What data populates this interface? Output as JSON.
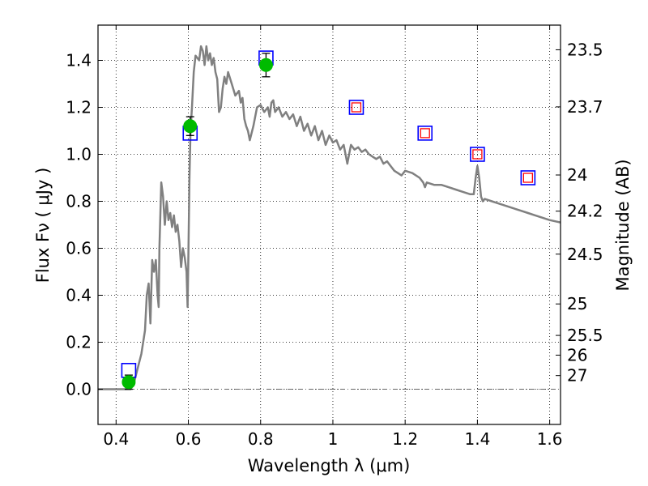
{
  "chart_data": {
    "type": "scatter",
    "title": "",
    "xlabel": "Wavelength  λ (μm)",
    "ylabel": "Flux  Fν  ( μJy )",
    "y2label": "Magnitude (AB)",
    "xlim": [
      0.35,
      1.63
    ],
    "ylim": [
      -0.15,
      1.55
    ],
    "grid": true,
    "x_ticks": [
      {
        "value": 0.4,
        "label": "0.4"
      },
      {
        "value": 0.6,
        "label": "0.6"
      },
      {
        "value": 0.8,
        "label": "0.8"
      },
      {
        "value": 1.0,
        "label": "1"
      },
      {
        "value": 1.2,
        "label": "1.2"
      },
      {
        "value": 1.4,
        "label": "1.4"
      },
      {
        "value": 1.6,
        "label": "1.6"
      }
    ],
    "y_ticks": [
      {
        "value": 0.0,
        "label": "0.0"
      },
      {
        "value": 0.2,
        "label": "0.2"
      },
      {
        "value": 0.4,
        "label": "0.4"
      },
      {
        "value": 0.6,
        "label": "0.6"
      },
      {
        "value": 0.8,
        "label": "0.8"
      },
      {
        "value": 1.0,
        "label": "1.0"
      },
      {
        "value": 1.2,
        "label": "1.2"
      },
      {
        "value": 1.4,
        "label": "1.4"
      }
    ],
    "y2_ticks": [
      {
        "flux": 1.445,
        "label": "23.5"
      },
      {
        "flux": 1.202,
        "label": "23.7"
      },
      {
        "flux": 0.912,
        "label": "24"
      },
      {
        "flux": 0.758,
        "label": "24.2"
      },
      {
        "flux": 0.575,
        "label": "24.5"
      },
      {
        "flux": 0.363,
        "label": "25"
      },
      {
        "flux": 0.229,
        "label": "25.5"
      },
      {
        "flux": 0.145,
        "label": "26"
      },
      {
        "flux": 0.058,
        "label": "27"
      }
    ],
    "series": [
      {
        "kind": "line",
        "color": "#808080",
        "points": [
          [
            0.35,
            0.0
          ],
          [
            0.44,
            0.0
          ],
          [
            0.45,
            0.03
          ],
          [
            0.47,
            0.15
          ],
          [
            0.48,
            0.25
          ],
          [
            0.485,
            0.4
          ],
          [
            0.49,
            0.45
          ],
          [
            0.495,
            0.28
          ],
          [
            0.5,
            0.55
          ],
          [
            0.505,
            0.5
          ],
          [
            0.51,
            0.55
          ],
          [
            0.515,
            0.4
          ],
          [
            0.518,
            0.35
          ],
          [
            0.52,
            0.6
          ],
          [
            0.525,
            0.88
          ],
          [
            0.53,
            0.82
          ],
          [
            0.535,
            0.7
          ],
          [
            0.54,
            0.8
          ],
          [
            0.545,
            0.72
          ],
          [
            0.55,
            0.75
          ],
          [
            0.555,
            0.69
          ],
          [
            0.56,
            0.74
          ],
          [
            0.565,
            0.67
          ],
          [
            0.57,
            0.7
          ],
          [
            0.575,
            0.63
          ],
          [
            0.58,
            0.52
          ],
          [
            0.585,
            0.6
          ],
          [
            0.59,
            0.56
          ],
          [
            0.595,
            0.5
          ],
          [
            0.598,
            0.35
          ],
          [
            0.6,
            0.55
          ],
          [
            0.603,
            0.9
          ],
          [
            0.606,
            1.1
          ],
          [
            0.61,
            1.2
          ],
          [
            0.615,
            1.35
          ],
          [
            0.62,
            1.42
          ],
          [
            0.63,
            1.4
          ],
          [
            0.635,
            1.46
          ],
          [
            0.64,
            1.44
          ],
          [
            0.645,
            1.38
          ],
          [
            0.65,
            1.46
          ],
          [
            0.655,
            1.4
          ],
          [
            0.66,
            1.43
          ],
          [
            0.665,
            1.38
          ],
          [
            0.67,
            1.41
          ],
          [
            0.675,
            1.35
          ],
          [
            0.68,
            1.32
          ],
          [
            0.685,
            1.18
          ],
          [
            0.69,
            1.2
          ],
          [
            0.695,
            1.28
          ],
          [
            0.7,
            1.33
          ],
          [
            0.705,
            1.3
          ],
          [
            0.71,
            1.35
          ],
          [
            0.72,
            1.3
          ],
          [
            0.73,
            1.25
          ],
          [
            0.74,
            1.27
          ],
          [
            0.745,
            1.22
          ],
          [
            0.75,
            1.24
          ],
          [
            0.755,
            1.15
          ],
          [
            0.76,
            1.12
          ],
          [
            0.765,
            1.1
          ],
          [
            0.77,
            1.06
          ],
          [
            0.78,
            1.12
          ],
          [
            0.79,
            1.2
          ],
          [
            0.8,
            1.21
          ],
          [
            0.81,
            1.18
          ],
          [
            0.82,
            1.2
          ],
          [
            0.825,
            1.16
          ],
          [
            0.83,
            1.22
          ],
          [
            0.835,
            1.23
          ],
          [
            0.84,
            1.18
          ],
          [
            0.85,
            1.2
          ],
          [
            0.86,
            1.16
          ],
          [
            0.87,
            1.18
          ],
          [
            0.88,
            1.15
          ],
          [
            0.89,
            1.17
          ],
          [
            0.9,
            1.12
          ],
          [
            0.91,
            1.16
          ],
          [
            0.92,
            1.1
          ],
          [
            0.93,
            1.13
          ],
          [
            0.94,
            1.08
          ],
          [
            0.95,
            1.12
          ],
          [
            0.96,
            1.06
          ],
          [
            0.97,
            1.1
          ],
          [
            0.98,
            1.04
          ],
          [
            0.99,
            1.08
          ],
          [
            1.0,
            1.05
          ],
          [
            1.01,
            1.06
          ],
          [
            1.02,
            1.02
          ],
          [
            1.03,
            1.04
          ],
          [
            1.035,
            1.0
          ],
          [
            1.04,
            0.96
          ],
          [
            1.045,
            1.0
          ],
          [
            1.05,
            1.04
          ],
          [
            1.06,
            1.02
          ],
          [
            1.07,
            1.03
          ],
          [
            1.08,
            1.01
          ],
          [
            1.09,
            1.02
          ],
          [
            1.1,
            1.0
          ],
          [
            1.11,
            0.99
          ],
          [
            1.12,
            0.98
          ],
          [
            1.13,
            0.99
          ],
          [
            1.14,
            0.96
          ],
          [
            1.15,
            0.97
          ],
          [
            1.16,
            0.95
          ],
          [
            1.17,
            0.93
          ],
          [
            1.18,
            0.92
          ],
          [
            1.19,
            0.91
          ],
          [
            1.2,
            0.93
          ],
          [
            1.22,
            0.92
          ],
          [
            1.24,
            0.9
          ],
          [
            1.25,
            0.88
          ],
          [
            1.255,
            0.86
          ],
          [
            1.26,
            0.88
          ],
          [
            1.28,
            0.87
          ],
          [
            1.3,
            0.87
          ],
          [
            1.32,
            0.86
          ],
          [
            1.34,
            0.85
          ],
          [
            1.36,
            0.84
          ],
          [
            1.38,
            0.83
          ],
          [
            1.39,
            0.83
          ],
          [
            1.395,
            0.9
          ],
          [
            1.4,
            0.95
          ],
          [
            1.405,
            0.9
          ],
          [
            1.41,
            0.82
          ],
          [
            1.415,
            0.8
          ],
          [
            1.42,
            0.81
          ],
          [
            1.44,
            0.8
          ],
          [
            1.46,
            0.79
          ],
          [
            1.48,
            0.78
          ],
          [
            1.5,
            0.77
          ],
          [
            1.52,
            0.76
          ],
          [
            1.54,
            0.75
          ],
          [
            1.56,
            0.74
          ],
          [
            1.58,
            0.73
          ],
          [
            1.6,
            0.72
          ],
          [
            1.63,
            0.71
          ]
        ]
      },
      {
        "kind": "square",
        "edge_color": "#0000ff",
        "points": [
          [
            0.435,
            0.08
          ],
          [
            0.605,
            1.09
          ],
          [
            0.815,
            1.41
          ],
          [
            1.065,
            1.2
          ],
          [
            1.255,
            1.09
          ],
          [
            1.4,
            1.0
          ],
          [
            1.54,
            0.9
          ]
        ]
      },
      {
        "kind": "small-square",
        "edge_color": "#ff0000",
        "points": [
          [
            1.065,
            1.2
          ],
          [
            1.255,
            1.09
          ],
          [
            1.4,
            1.0
          ],
          [
            1.54,
            0.9
          ]
        ]
      },
      {
        "kind": "point",
        "color": "#00bb00",
        "points": [
          {
            "x": 0.435,
            "y": 0.03,
            "err": 0.03
          },
          {
            "x": 0.605,
            "y": 1.12,
            "err": 0.04
          },
          {
            "x": 0.815,
            "y": 1.38,
            "err": 0.05
          }
        ]
      }
    ]
  }
}
